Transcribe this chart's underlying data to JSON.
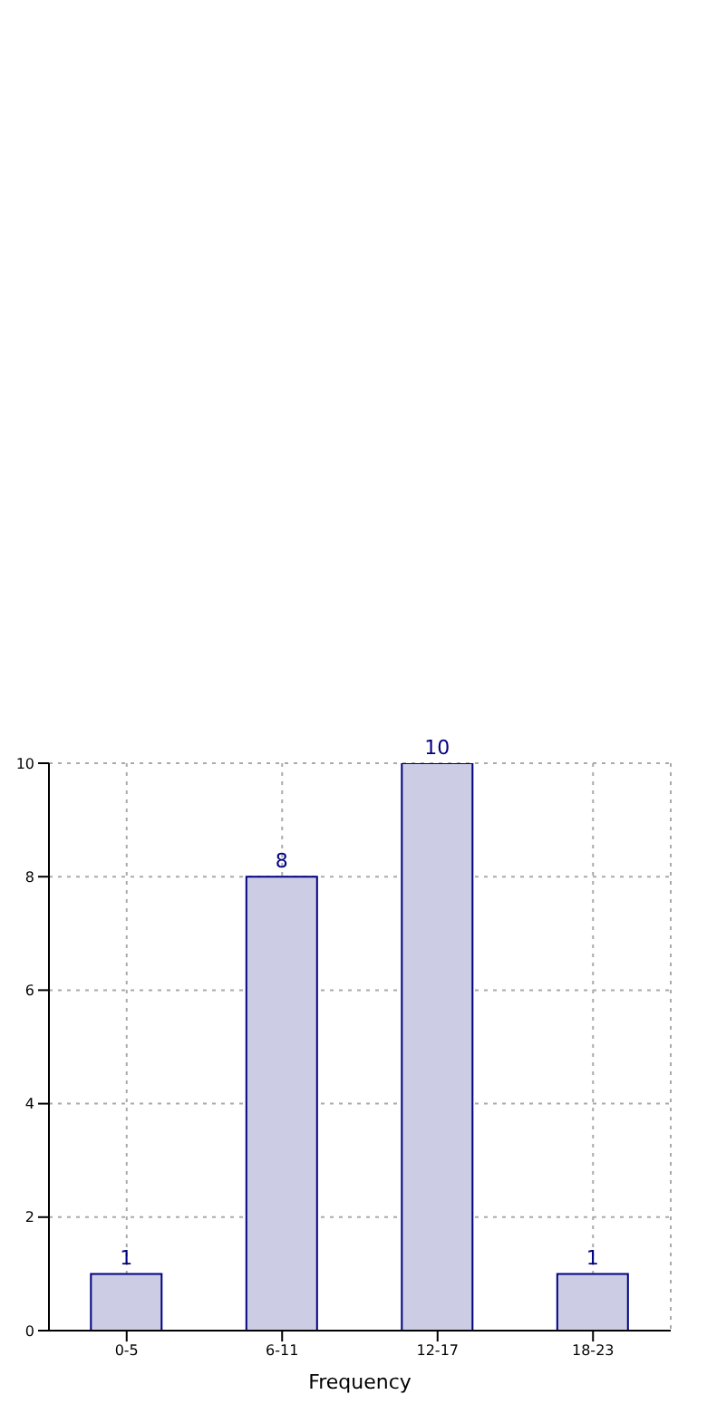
{
  "chart_data": {
    "type": "bar",
    "xlabel": "Frequency",
    "categories": [
      "0-5",
      "6-11",
      "12-17",
      "18-23"
    ],
    "series": [
      {
        "color": "#cccce5",
        "values": [
          1,
          8,
          10,
          1
        ]
      }
    ],
    "ylim": [
      0,
      10
    ],
    "yticks": [
      0,
      2,
      4,
      6,
      8,
      10
    ],
    "grid": true,
    "data_labels": true
  }
}
